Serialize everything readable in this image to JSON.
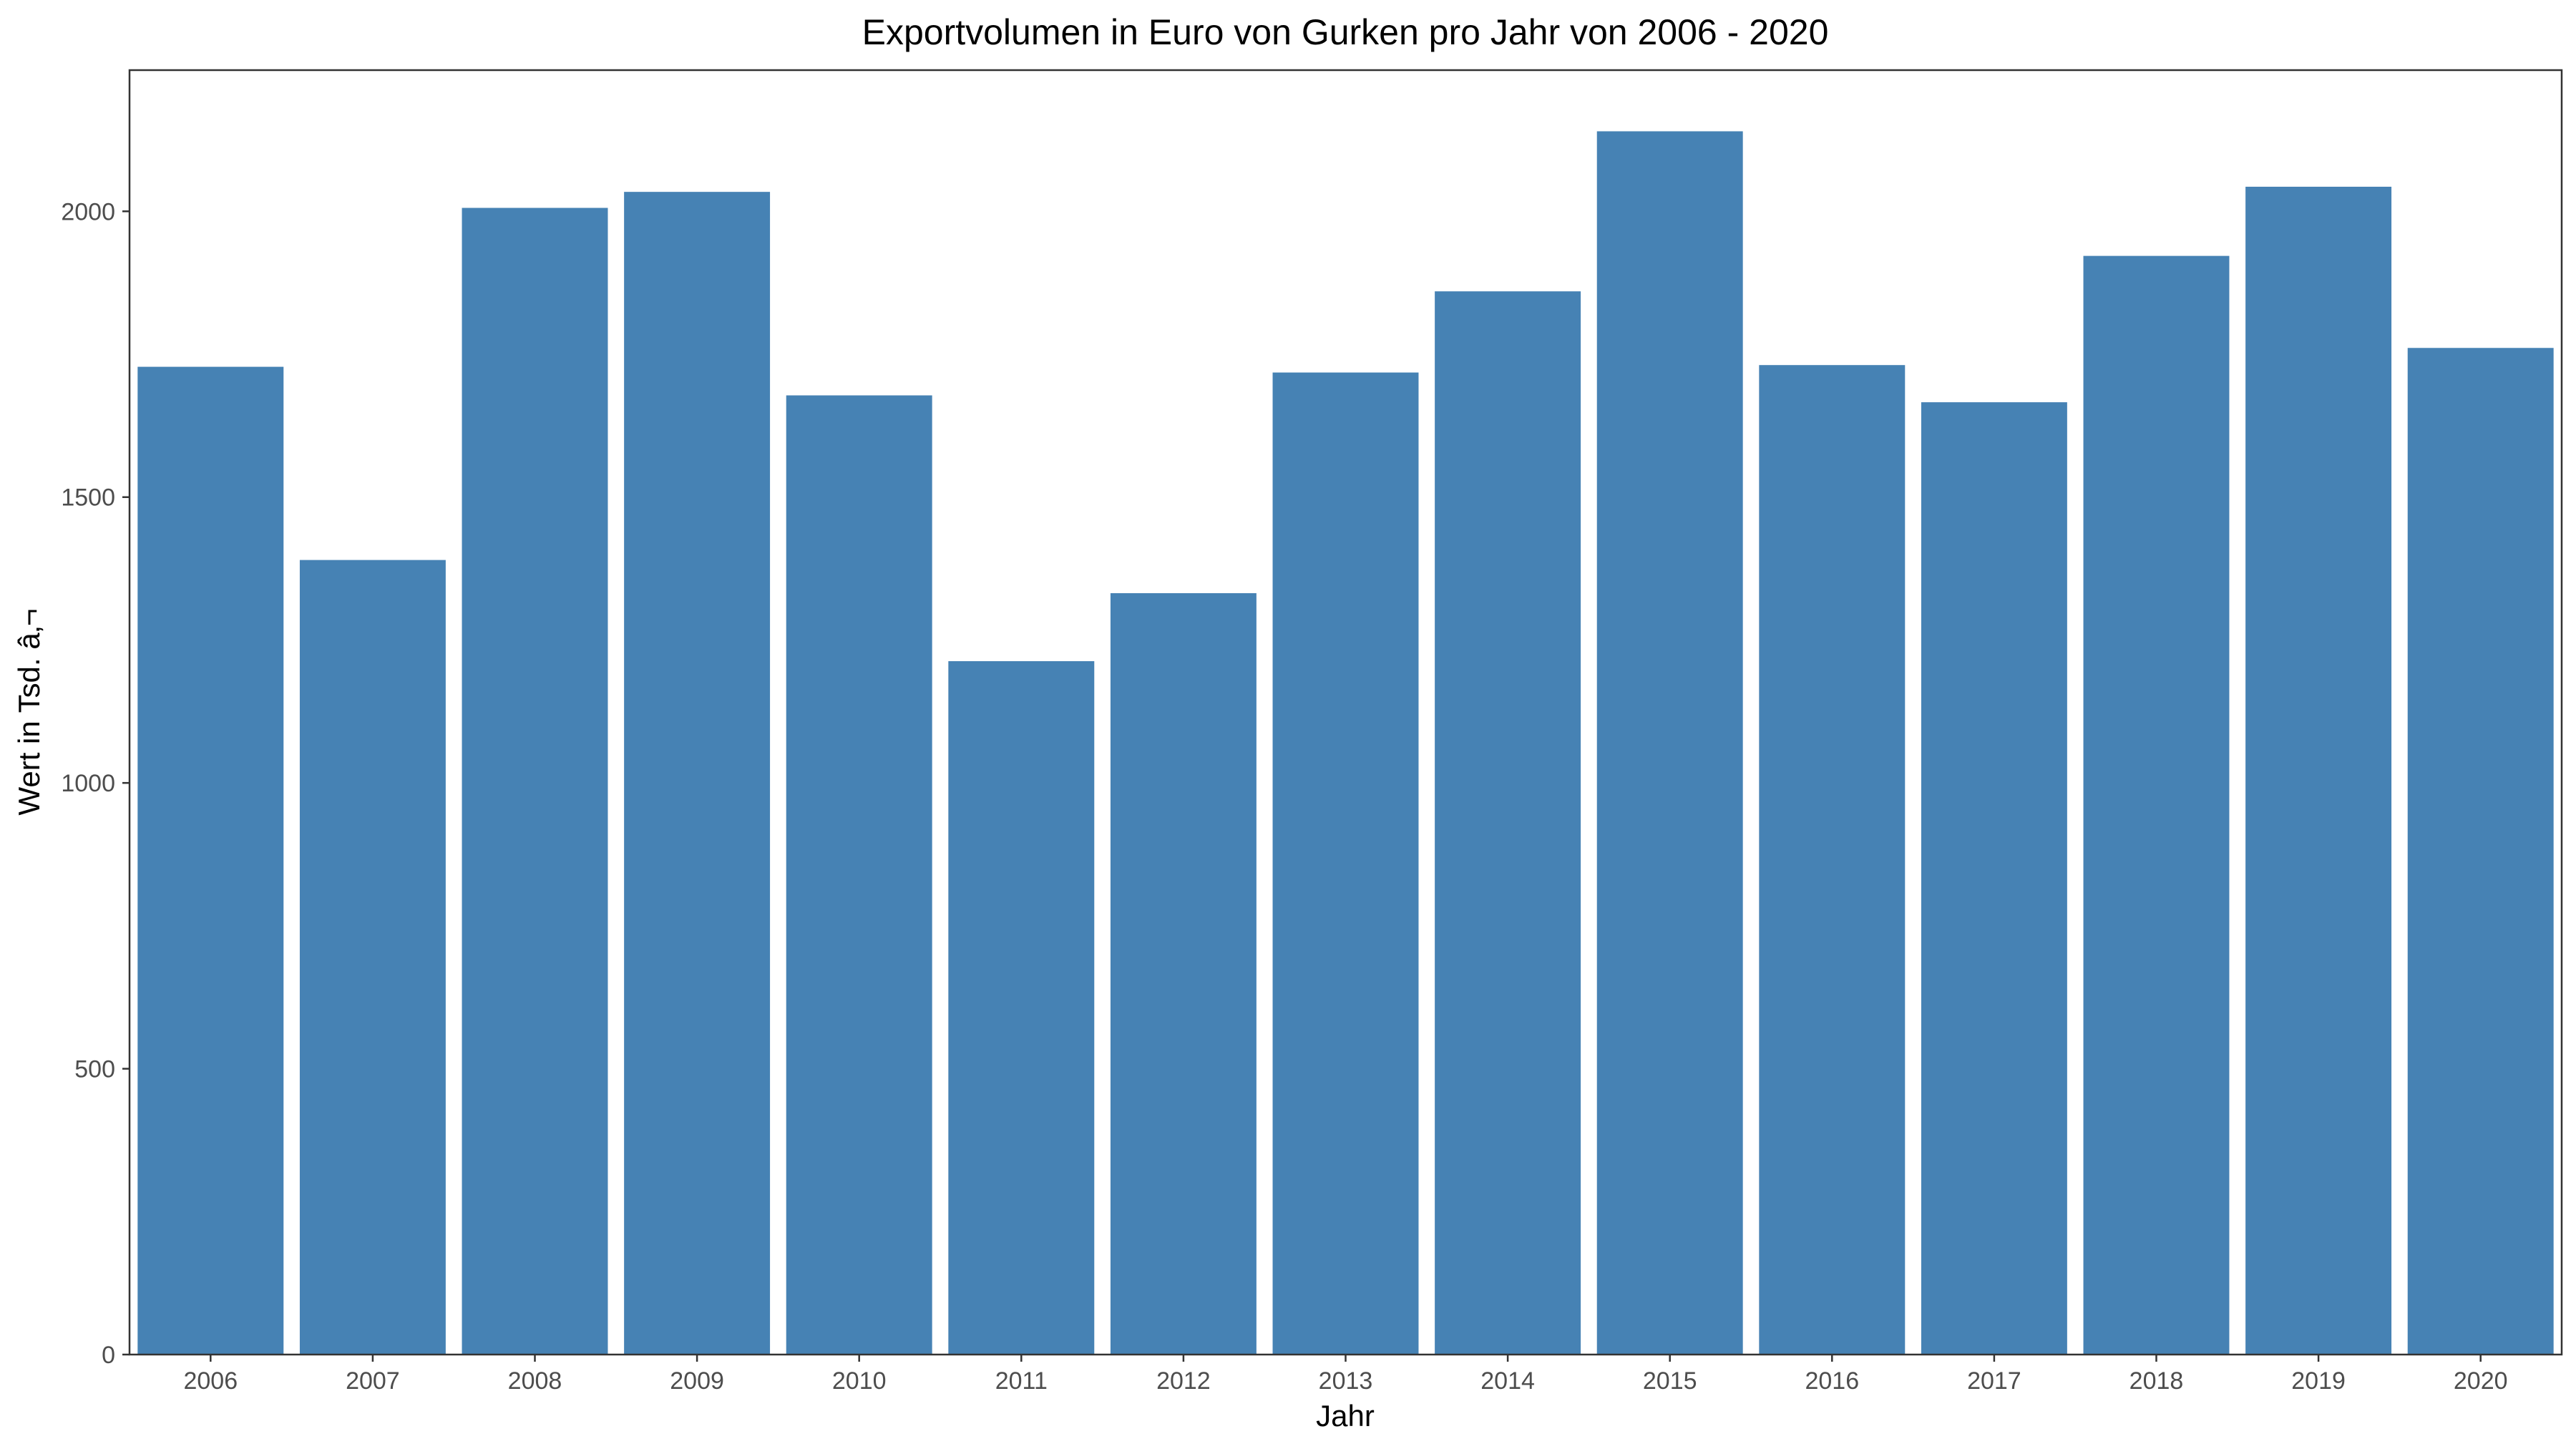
{
  "chart_data": {
    "type": "bar",
    "title": "Exportvolumen in Euro von Gurken pro Jahr von 2006 - 2020",
    "xlabel": "Jahr",
    "ylabel": "Wert in Tsd. â‚¬",
    "categories": [
      "2006",
      "2007",
      "2008",
      "2009",
      "2010",
      "2011",
      "2012",
      "2013",
      "2014",
      "2015",
      "2016",
      "2017",
      "2018",
      "2019",
      "2020"
    ],
    "values": [
      1728,
      1390,
      2006,
      2034,
      1678,
      1213,
      1332,
      1718,
      1860,
      2140,
      1731,
      1666,
      1922,
      2043,
      1761
    ],
    "yticks": [
      0,
      500,
      1000,
      1500,
      2000
    ],
    "ytick_labels": [
      "0",
      "500",
      "1000",
      "1500",
      "2000"
    ],
    "ylim": [
      0,
      2247
    ],
    "grid": false,
    "legend": "none",
    "bar_color": "#4682B4"
  }
}
